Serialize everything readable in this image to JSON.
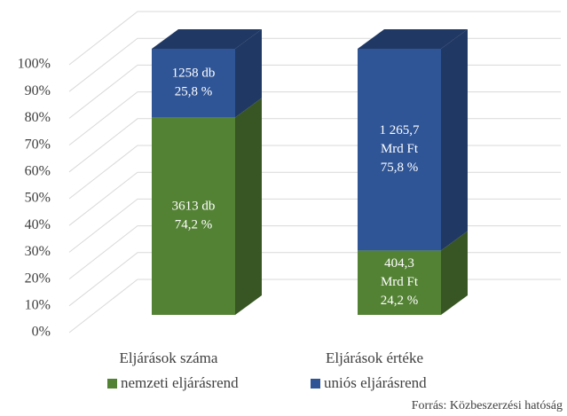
{
  "chart_data": {
    "type": "bar3d_stacked",
    "categories": [
      "Eljárások száma",
      "Eljárások értéke"
    ],
    "series": [
      {
        "name": "nemzeti eljárásrend",
        "color": "#548235",
        "side_color": "#375623",
        "values": [
          74.2,
          24.2
        ],
        "value_labels": [
          [
            "3613 db",
            "74,2 %"
          ],
          [
            "404,3",
            "Mrd Ft",
            "24,2 %"
          ]
        ]
      },
      {
        "name": "uniós eljárásrend",
        "color": "#2f5597",
        "side_color": "#203864",
        "values": [
          25.8,
          75.8
        ],
        "value_labels": [
          [
            "1258 db",
            "25,8 %"
          ],
          [
            "1 265,7",
            "Mrd Ft",
            "75,8 %"
          ]
        ]
      }
    ],
    "ylim": [
      0,
      100
    ],
    "yticks": [
      {
        "value": 0,
        "label": "0%"
      },
      {
        "value": 10,
        "label": "10%"
      },
      {
        "value": 20,
        "label": "20%"
      },
      {
        "value": 30,
        "label": "30%"
      },
      {
        "value": 40,
        "label": "40%"
      },
      {
        "value": 50,
        "label": "50%"
      },
      {
        "value": 60,
        "label": "60%"
      },
      {
        "value": 70,
        "label": "70%"
      },
      {
        "value": 80,
        "label": "80%"
      },
      {
        "value": 90,
        "label": "90%"
      },
      {
        "value": 100,
        "label": "100%"
      }
    ],
    "grid": true,
    "source": "Forrás: Közbeszerzési hatóság"
  }
}
